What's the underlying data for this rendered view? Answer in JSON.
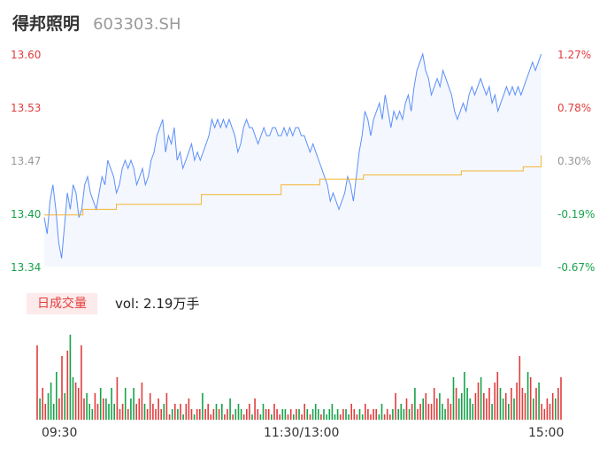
{
  "header": {
    "name": "得邦照明",
    "code": "603303.SH"
  },
  "colors": {
    "up": "#e23c3c",
    "down": "#16a34a",
    "neutral": "#999999",
    "price_line": "#5b8ff9",
    "avg_line": "#f2b632"
  },
  "volume": {
    "badge": "日成交量",
    "label": "vol: 2.19万手"
  },
  "chart_data": {
    "type": "line",
    "y_price_ticks": [
      "13.60",
      "13.53",
      "13.47",
      "13.40",
      "13.34"
    ],
    "y_pct_ticks": [
      "1.27%",
      "0.78%",
      "0.30%",
      "-0.19%",
      "-0.67%"
    ],
    "x_ticks": [
      "09:30",
      "11:30/13:00",
      "15:00"
    ],
    "ylim": [
      13.34,
      13.6
    ],
    "series": [
      {
        "kind": "price",
        "values": [
          13.4,
          13.38,
          13.42,
          13.44,
          13.41,
          13.37,
          13.35,
          13.39,
          13.43,
          13.41,
          13.44,
          13.43,
          13.4,
          13.41,
          13.44,
          13.45,
          13.43,
          13.42,
          13.41,
          13.43,
          13.45,
          13.44,
          13.47,
          13.46,
          13.45,
          13.43,
          13.44,
          13.46,
          13.47,
          13.46,
          13.47,
          13.46,
          13.44,
          13.45,
          13.46,
          13.44,
          13.45,
          13.47,
          13.48,
          13.5,
          13.51,
          13.52,
          13.48,
          13.5,
          13.49,
          13.51,
          13.47,
          13.48,
          13.46,
          13.47,
          13.48,
          13.49,
          13.47,
          13.48,
          13.47,
          13.48,
          13.49,
          13.5,
          13.52,
          13.51,
          13.52,
          13.51,
          13.52,
          13.51,
          13.52,
          13.51,
          13.5,
          13.48,
          13.49,
          13.51,
          13.52,
          13.51,
          13.51,
          13.5,
          13.49,
          13.5,
          13.51,
          13.5,
          13.5,
          13.51,
          13.51,
          13.5,
          13.5,
          13.51,
          13.5,
          13.51,
          13.5,
          13.51,
          13.51,
          13.5,
          13.5,
          13.49,
          13.48,
          13.49,
          13.48,
          13.47,
          13.46,
          13.45,
          13.44,
          13.42,
          13.43,
          13.42,
          13.41,
          13.42,
          13.43,
          13.45,
          13.44,
          13.42,
          13.45,
          13.48,
          13.5,
          13.53,
          13.52,
          13.5,
          13.52,
          13.53,
          13.54,
          13.52,
          13.55,
          13.53,
          13.51,
          13.53,
          13.52,
          13.53,
          13.52,
          13.54,
          13.55,
          13.53,
          13.56,
          13.58,
          13.59,
          13.6,
          13.58,
          13.57,
          13.55,
          13.56,
          13.57,
          13.56,
          13.58,
          13.57,
          13.56,
          13.55,
          13.53,
          13.52,
          13.53,
          13.54,
          13.53,
          13.55,
          13.56,
          13.55,
          13.56,
          13.57,
          13.56,
          13.55,
          13.56,
          13.54,
          13.55,
          13.53,
          13.54,
          13.55,
          13.56,
          13.55,
          13.56,
          13.55,
          13.56,
          13.55,
          13.56,
          13.57,
          13.58,
          13.59,
          13.58,
          13.59,
          13.6
        ],
        "end_x": 0.965
      },
      {
        "kind": "average",
        "steps": [
          [
            0.0,
            13.403
          ],
          [
            0.075,
            13.41
          ],
          [
            0.14,
            13.416
          ],
          [
            0.305,
            13.428
          ],
          [
            0.46,
            13.44
          ],
          [
            0.535,
            13.447
          ],
          [
            0.62,
            13.452
          ],
          [
            0.81,
            13.457
          ],
          [
            0.93,
            13.462
          ],
          [
            1.02,
            13.471
          ],
          [
            1.05,
            13.476
          ]
        ],
        "end_x": 0.965
      }
    ],
    "volume_series": {
      "values": [
        14,
        4,
        6,
        3,
        5,
        7,
        3,
        9,
        4,
        12,
        5,
        13,
        16,
        8,
        7,
        6,
        14,
        4,
        5,
        3,
        2,
        5,
        3,
        6,
        4,
        4,
        3,
        6,
        3,
        8,
        2,
        3,
        6,
        2,
        4,
        6,
        3,
        4,
        7,
        3,
        2,
        5,
        3,
        2,
        4,
        2,
        3,
        5,
        1,
        2,
        3,
        2,
        3,
        1,
        3,
        4,
        2,
        1,
        2,
        2,
        5,
        2,
        3,
        1,
        2,
        3,
        2,
        3,
        1,
        2,
        4,
        1,
        2,
        3,
        2,
        1,
        2,
        3,
        1,
        4,
        2,
        1,
        3,
        2,
        2,
        1,
        3,
        2,
        1,
        2,
        2,
        1,
        2,
        1,
        2,
        2,
        1,
        3,
        2,
        1,
        2,
        3,
        2,
        1,
        2,
        1,
        2,
        3,
        1,
        2,
        1,
        2,
        2,
        1,
        3,
        2,
        1,
        2,
        1,
        3,
        2,
        1,
        2,
        2,
        1,
        3,
        1,
        2,
        1,
        2,
        5,
        2,
        3,
        2,
        4,
        2,
        3,
        6,
        2,
        3,
        4,
        5,
        3,
        3,
        6,
        4,
        5,
        3,
        2,
        4,
        3,
        8,
        6,
        4,
        5,
        9,
        6,
        4,
        3,
        5,
        7,
        8,
        5,
        4,
        6,
        3,
        7,
        9,
        6,
        4,
        5,
        3,
        6,
        4,
        7,
        12,
        6,
        5,
        9,
        8,
        4,
        6,
        7,
        3,
        2,
        4,
        3,
        5,
        4,
        6,
        8
      ],
      "max_label_value": 16
    }
  }
}
